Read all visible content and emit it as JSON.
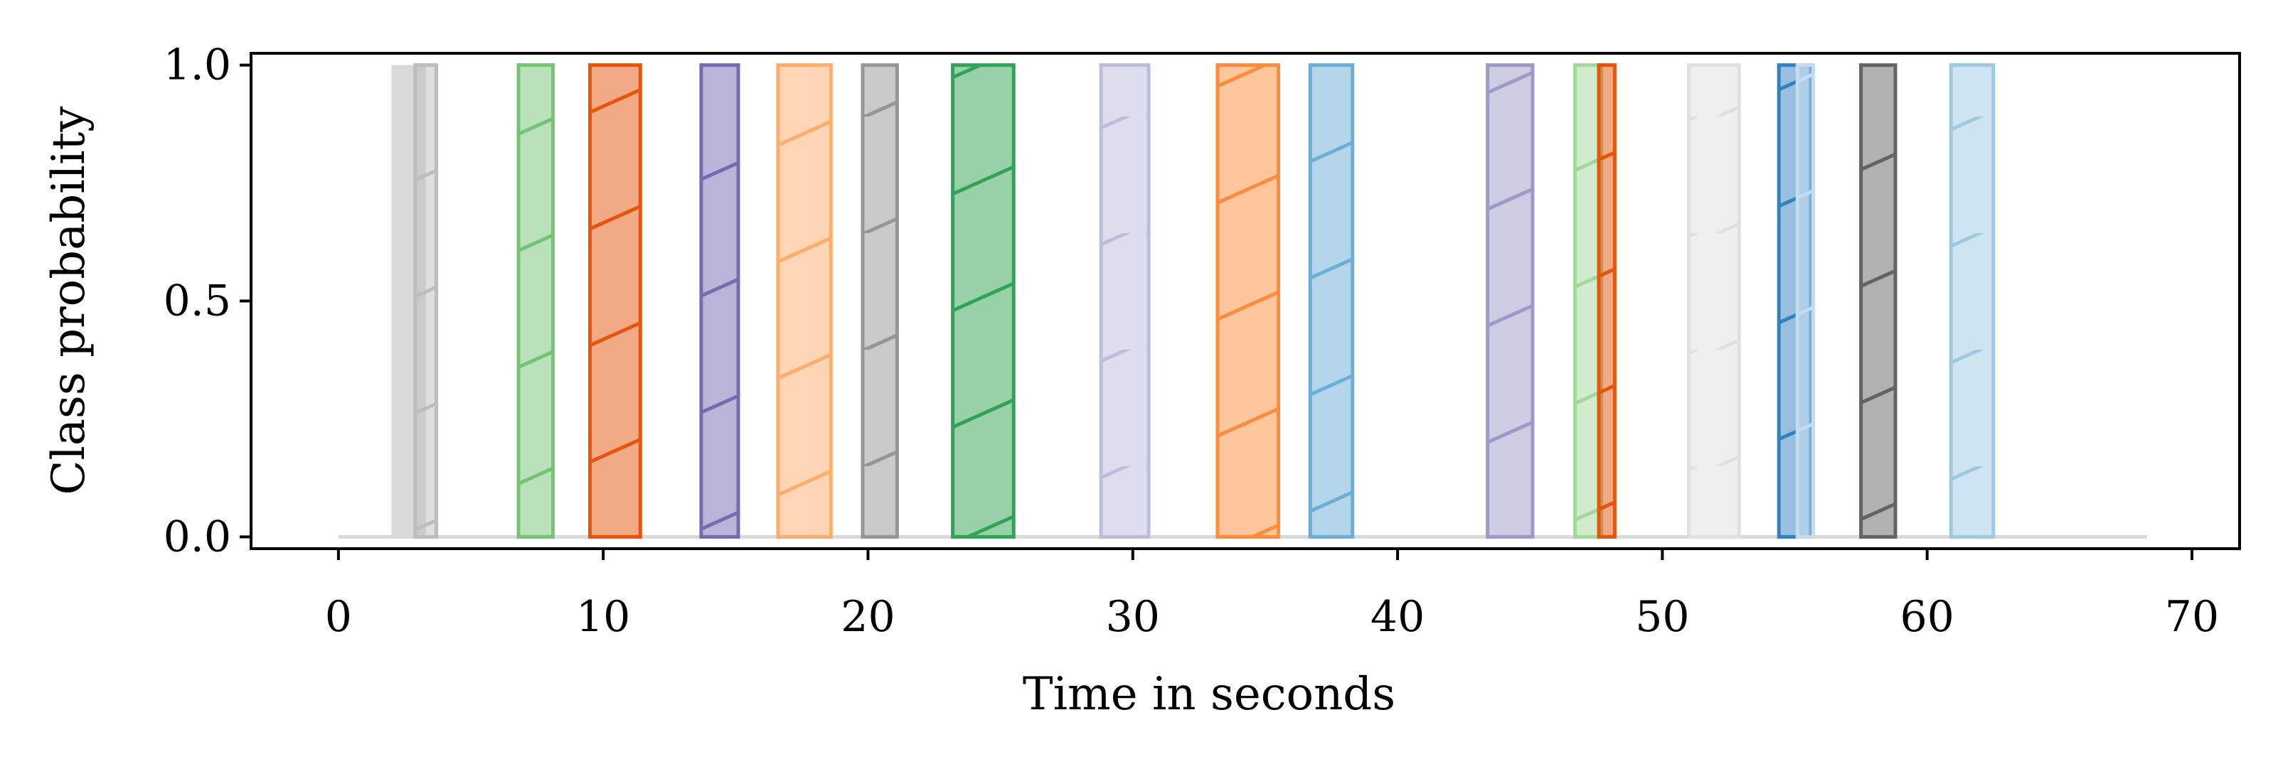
{
  "chart_data": {
    "type": "bar",
    "title": "",
    "xlabel": "Time in seconds",
    "ylabel": "Class probability",
    "xlim": [
      -3.3,
      71.8
    ],
    "ylim": [
      -0.025,
      1.025
    ],
    "x_ticks": [
      0,
      10,
      20,
      30,
      40,
      50,
      60,
      70
    ],
    "x_tick_labels": [
      "0",
      "10",
      "20",
      "30",
      "40",
      "50",
      "60",
      "70"
    ],
    "y_ticks": [
      0.0,
      0.5,
      1.0
    ],
    "y_tick_labels": [
      "0.0",
      "0.5",
      "1.0"
    ],
    "grid": false,
    "legend": "none",
    "baseline": {
      "x_start": 0,
      "x_end": 68.3,
      "value": 0,
      "color": "#d9d9d9"
    },
    "segments": [
      {
        "kind": "filled",
        "start": 2.0,
        "end": 3.3,
        "value": 1,
        "color": "#d9d9d9"
      },
      {
        "kind": "hatched",
        "start": 2.9,
        "end": 3.7,
        "value": 1,
        "color": "#bdbdbd"
      },
      {
        "kind": "hatched",
        "start": 6.8,
        "end": 8.1,
        "value": 1,
        "color": "#74c476"
      },
      {
        "kind": "hatched",
        "start": 9.5,
        "end": 11.4,
        "value": 1,
        "color": "#e6550d"
      },
      {
        "kind": "hatched",
        "start": 13.7,
        "end": 15.1,
        "value": 1,
        "color": "#756bb1"
      },
      {
        "kind": "hatched",
        "start": 16.6,
        "end": 18.6,
        "value": 1,
        "color": "#fdae6b"
      },
      {
        "kind": "hatched",
        "start": 19.8,
        "end": 21.1,
        "value": 1,
        "color": "#969696"
      },
      {
        "kind": "hatched",
        "start": 23.2,
        "end": 25.5,
        "value": 1,
        "color": "#31a354"
      },
      {
        "kind": "hatched",
        "start": 28.8,
        "end": 30.6,
        "value": 1,
        "color": "#bcbddc"
      },
      {
        "kind": "hatched",
        "start": 33.2,
        "end": 35.5,
        "value": 1,
        "color": "#fd8d3c"
      },
      {
        "kind": "hatched",
        "start": 36.7,
        "end": 38.3,
        "value": 1,
        "color": "#6baed6"
      },
      {
        "kind": "hatched",
        "start": 43.4,
        "end": 45.1,
        "value": 1,
        "color": "#9e9ac8"
      },
      {
        "kind": "hatched",
        "start": 46.7,
        "end": 47.7,
        "value": 1,
        "color": "#a1d99b"
      },
      {
        "kind": "hatched",
        "start": 47.6,
        "end": 48.2,
        "value": 1,
        "color": "#e6550d"
      },
      {
        "kind": "hatched",
        "start": 51.0,
        "end": 52.9,
        "value": 1,
        "color": "#e0e0e0"
      },
      {
        "kind": "hatched",
        "start": 54.4,
        "end": 55.6,
        "value": 1,
        "color": "#3182bd"
      },
      {
        "kind": "hatched",
        "start": 55.1,
        "end": 55.7,
        "value": 1,
        "color": "#c6dbef"
      },
      {
        "kind": "hatched",
        "start": 57.5,
        "end": 58.8,
        "value": 1,
        "color": "#636363"
      },
      {
        "kind": "hatched",
        "start": 60.9,
        "end": 62.5,
        "value": 1,
        "color": "#9ecae1"
      }
    ]
  }
}
